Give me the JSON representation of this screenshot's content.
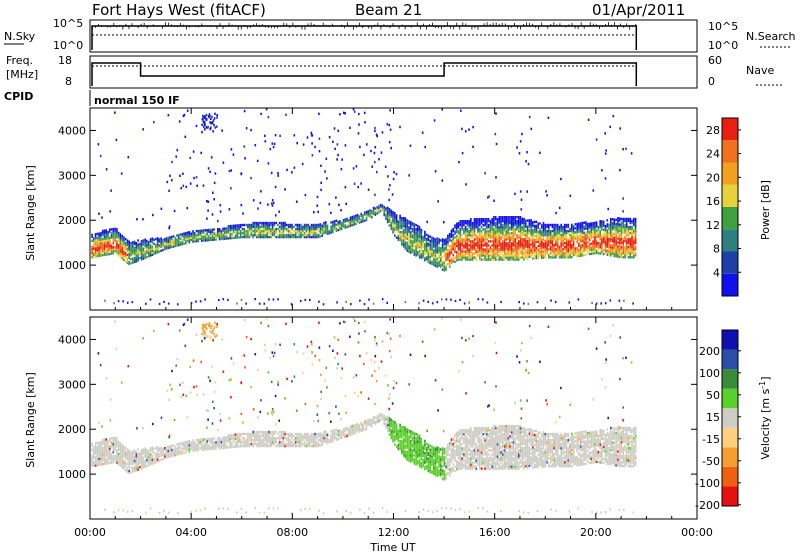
{
  "header": {
    "station": "Fort Hays West (fitACF)",
    "beam": "Beam 21",
    "date": "01/Apr/2011"
  },
  "noise_panel": {
    "left_label": "N.Sky",
    "left_ticks": [
      "10^5",
      "10^0"
    ],
    "right_ticks": [
      "10^5",
      "10^0"
    ],
    "right_label": "N.Search"
  },
  "freq_panel": {
    "left_label_1": "Freq.",
    "left_label_2": "[MHz]",
    "left_ticks": [
      "18",
      "8"
    ],
    "right_ticks": [
      "60",
      "0"
    ],
    "right_label": "Nave"
  },
  "cpid": {
    "label": "CPID",
    "mode": "normal 150 IF"
  },
  "colors": {
    "power": [
      "#1010ee",
      "#1f3fa8",
      "#2f7f7f",
      "#3fa040",
      "#e6d23a",
      "#f2a020",
      "#f07020",
      "#e82010"
    ],
    "velocity": [
      "#e61010",
      "#f06010",
      "#f4a030",
      "#ffd080",
      "#cdcdc5",
      "#5ad02a",
      "#3a8a3a",
      "#2a4fa8",
      "#1010b0"
    ]
  },
  "chart_data": [
    {
      "type": "heatmap",
      "title": "",
      "xlabel": "Time UT",
      "ylabel": "Slant Range [km]",
      "xlim": [
        "00:00",
        "24:00"
      ],
      "ylim": [
        0,
        4500
      ],
      "x_ticks": [
        "00:00",
        "04:00",
        "08:00",
        "12:00",
        "16:00",
        "20:00",
        "00:00"
      ],
      "y_ticks": [
        1000,
        2000,
        3000,
        4000
      ],
      "colorbar": {
        "label": "Power [dB]",
        "ticks": [
          4,
          8,
          12,
          16,
          20,
          24,
          28
        ],
        "range": [
          0,
          30
        ]
      },
      "data_end_ut": 21.6,
      "echo_band": {
        "ut": [
          0,
          0.5,
          1,
          1.5,
          2,
          3,
          4,
          5,
          6,
          7,
          8,
          9,
          10,
          11,
          11.5,
          12,
          12.5,
          13,
          13.5,
          14,
          14.5,
          15,
          16,
          17,
          18,
          19,
          20,
          21,
          21.6
        ],
        "lower_km": [
          1200,
          1250,
          1300,
          1050,
          1150,
          1400,
          1550,
          1600,
          1650,
          1650,
          1650,
          1650,
          1850,
          2050,
          2250,
          1700,
          1350,
          1200,
          1050,
          900,
          1150,
          1150,
          1150,
          1150,
          1200,
          1200,
          1300,
          1200,
          1200
        ],
        "upper_km": [
          1700,
          1800,
          1850,
          1550,
          1600,
          1650,
          1800,
          1850,
          1950,
          2000,
          1950,
          1950,
          2050,
          2250,
          2400,
          2200,
          2050,
          1900,
          1650,
          1600,
          2000,
          2050,
          2100,
          2100,
          1950,
          1950,
          2000,
          2100,
          2100
        ]
      }
    },
    {
      "type": "heatmap",
      "title": "",
      "xlabel": "Time UT",
      "ylabel": "Slant Range [km]",
      "xlim": [
        "00:00",
        "24:00"
      ],
      "ylim": [
        0,
        4500
      ],
      "x_ticks": [
        "00:00",
        "04:00",
        "08:00",
        "12:00",
        "16:00",
        "20:00",
        "00:00"
      ],
      "y_ticks": [
        1000,
        2000,
        3000,
        4000
      ],
      "colorbar": {
        "label": "Velocity [m s^-1]",
        "ticks": [
          200,
          100,
          50,
          15,
          -15,
          -50,
          -100,
          -200
        ],
        "range": [
          -250,
          250
        ]
      },
      "data_end_ut": 21.6
    }
  ]
}
